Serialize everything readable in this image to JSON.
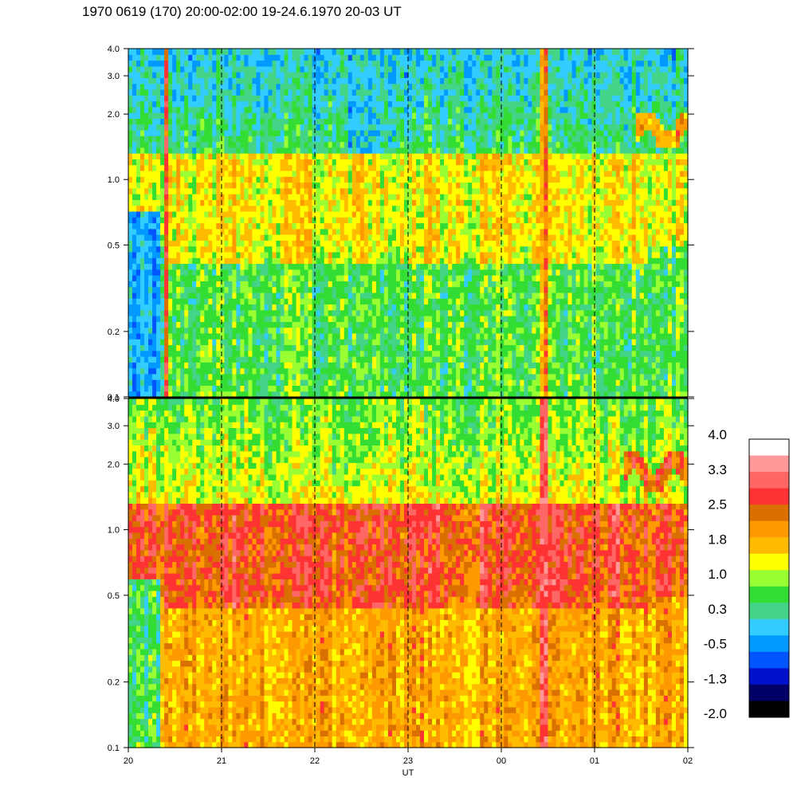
{
  "title": "1970 0619 (170) 20:00-02:00 19-24.6.1970  20-03 UT",
  "chart_data": {
    "type": "heatmap",
    "title": "1970 0619 (170) 20:00-02:00 19-24.6.1970  20-03 UT",
    "xlabel": "UT",
    "x_tick_labels": [
      "20",
      "21",
      "22",
      "23",
      "00",
      "01",
      "02"
    ],
    "x_range_hours": [
      20,
      26
    ],
    "dashed_hour_lines": [
      "21",
      "22",
      "23",
      "00",
      "01"
    ],
    "y_scale": "log",
    "y_range": [
      0.1,
      4.0
    ],
    "y_tick_values": [
      0.1,
      0.2,
      0.5,
      1.0,
      2.0,
      3.0,
      4.0
    ],
    "y_tick_labels": [
      "0.1",
      "0.2",
      "0.5",
      "1.0",
      "2.0",
      "3.0",
      "4.0"
    ],
    "panels": [
      {
        "name": "upper",
        "dominant_level_low_freq": 0.5,
        "dominant_level_mid_freq": 1.2,
        "dominant_level_high_freq": 0.3,
        "features": [
          {
            "type": "low-intensity block",
            "x_start": 20.0,
            "x_end": 20.35,
            "y_max": 0.7,
            "level": -0.5
          },
          {
            "type": "enhanced band",
            "x_start": 20.4,
            "x_end": 25.7,
            "y_min": 0.4,
            "y_max": 1.3,
            "level": 1.2
          },
          {
            "type": "low-intensity patch",
            "x_start": 22.35,
            "x_end": 22.7,
            "y_min": 1.3,
            "y_max": 3.0,
            "level": -0.3
          },
          {
            "type": "narrowband feature",
            "x_start": 25.45,
            "x_end": 26.0,
            "y_min": 1.4,
            "y_max": 2.0,
            "level": 1.8
          },
          {
            "type": "vertical burst",
            "x_start": 20.37,
            "x_end": 20.42,
            "level": 2.3
          },
          {
            "type": "vertical burst",
            "x_start": 24.4,
            "x_end": 24.48,
            "level": 2.0
          }
        ]
      },
      {
        "name": "lower",
        "dominant_level_low_freq": 1.8,
        "dominant_level_mid_freq": 2.5,
        "dominant_level_high_freq": 1.2,
        "features": [
          {
            "type": "low-intensity block",
            "x_start": 20.0,
            "x_end": 20.35,
            "y_max": 0.6,
            "level": 0.3
          },
          {
            "type": "enhanced band",
            "x_start": 20.4,
            "x_end": 25.7,
            "y_min": 0.45,
            "y_max": 1.3,
            "level": 2.5
          },
          {
            "type": "narrowband feature",
            "x_start": 25.3,
            "x_end": 26.0,
            "y_min": 1.5,
            "y_max": 2.3,
            "level": 2.5
          },
          {
            "type": "vertical burst",
            "x_start": 24.4,
            "x_end": 24.48,
            "level": 3.3
          }
        ]
      }
    ],
    "colorbar": {
      "labels": [
        "4.0",
        "3.3",
        "2.5",
        "1.8",
        "1.0",
        "0.3",
        "-0.5",
        "-1.3",
        "-2.0"
      ],
      "label_values": [
        4.0,
        3.3,
        2.5,
        1.8,
        1.0,
        0.3,
        -0.5,
        -1.3,
        -2.0
      ],
      "levels_top_to_bottom": [
        4.0,
        3.6,
        3.3,
        2.9,
        2.5,
        2.2,
        1.8,
        1.4,
        1.0,
        0.7,
        0.3,
        -0.1,
        -0.5,
        -0.9,
        -1.3,
        -1.6,
        -2.0
      ],
      "colors_top_to_bottom": [
        "#ffffff",
        "#ff9999",
        "#ff6666",
        "#ff3333",
        "#d97000",
        "#ff9900",
        "#ffbb00",
        "#ffff00",
        "#99ff33",
        "#33dd33",
        "#44d488",
        "#33ccff",
        "#0099ff",
        "#0055ff",
        "#0011cc",
        "#000066",
        "#000000"
      ]
    }
  }
}
